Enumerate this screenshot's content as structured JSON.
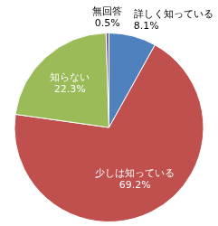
{
  "chart_data": {
    "type": "pie",
    "categories": [
      "詳しく知っている",
      "少しは知っている",
      "知らない",
      "無回答"
    ],
    "values": [
      8.1,
      69.2,
      22.3,
      0.5
    ],
    "value_labels": [
      "8.1%",
      "69.2%",
      "22.3%",
      "0.5%"
    ],
    "colors": [
      "#4f81bd",
      "#c0504d",
      "#9bbb59",
      "#8064a2"
    ],
    "data_labels": true
  }
}
